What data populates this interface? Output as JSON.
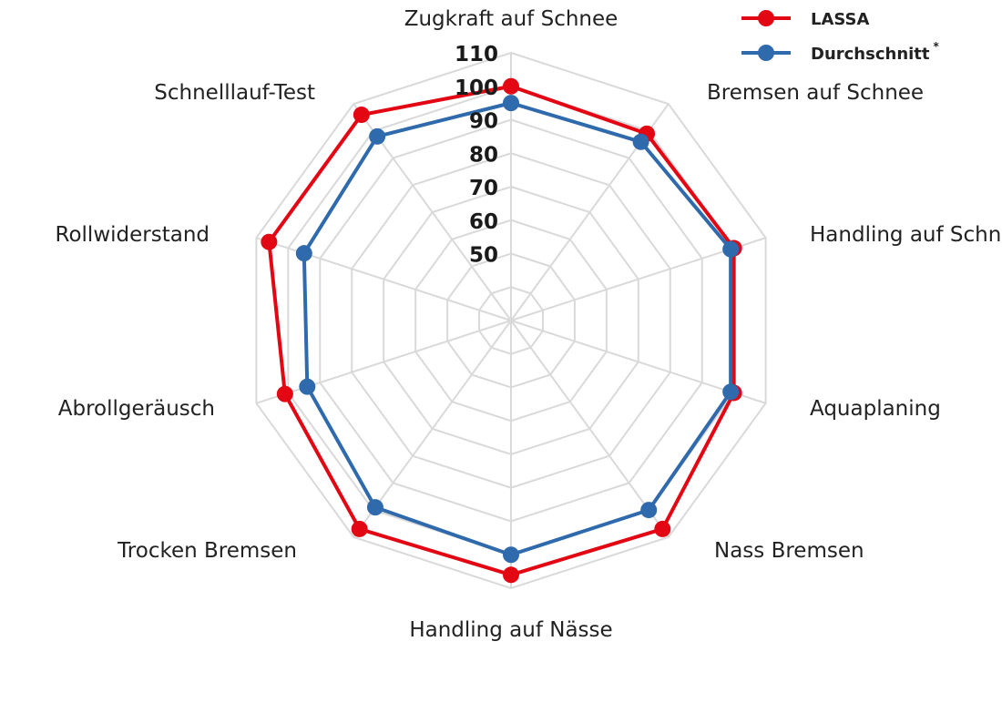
{
  "chart_data": {
    "type": "radar",
    "categories": [
      "Zugkraft auf Schnee",
      "Bremsen auf Schnee",
      "Handling auf Schnee",
      "Aquaplaning",
      "Nass Bremsen",
      "Handling auf Nässe",
      "Trocken Bremsen",
      "Abrollgeräusch",
      "Rollwiderstand",
      "Schnelllauf-Test"
    ],
    "series": [
      {
        "name": "LASSA",
        "color": "#e30613",
        "values": [
          100,
          99,
          100,
          100,
          107,
          106,
          107,
          101,
          106,
          106
        ]
      },
      {
        "name": "Durchschnitt",
        "legend_mark": "*",
        "color": "#2f6aad",
        "values": [
          95,
          96,
          99,
          99,
          100,
          100,
          99,
          94,
          95,
          98
        ]
      }
    ],
    "r_min": 30,
    "r_max": 110,
    "r_ticks": [
      50,
      60,
      70,
      80,
      90,
      100,
      110
    ],
    "grid_rings": [
      40,
      50,
      60,
      70,
      80,
      90,
      100,
      110
    ],
    "legend_position": "top-right",
    "grid": true
  }
}
